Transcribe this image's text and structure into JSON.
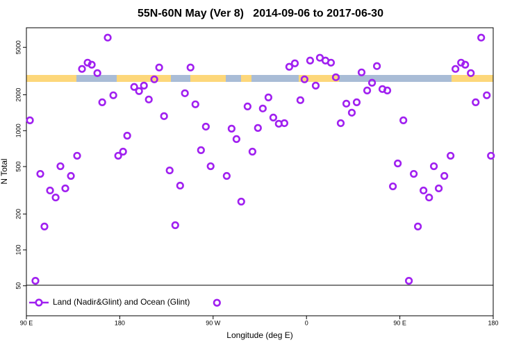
{
  "chart_data": {
    "type": "scatter",
    "title": "55N-60N May (Ver 8)   2014-09-06 to 2017-06-30",
    "x_label": "Longitude (deg E)",
    "y_label": "N Total",
    "ylog": true,
    "legend": "bottom-left",
    "xlim": [
      90,
      540
    ],
    "ylim": [
      28,
      7300
    ],
    "xticks": [
      {
        "value": 90,
        "label": "90 E"
      },
      180,
      {
        "value": 270,
        "label": "90 W"
      },
      {
        "value": 360,
        "label": "0"
      },
      {
        "value": 450,
        "label": "90 E"
      },
      {
        "value": 540,
        "label": "180"
      }
    ],
    "yticks": [
      50,
      100,
      200,
      500,
      1000,
      2000,
      5000
    ],
    "series": [
      {
        "name": "Land (Nadir&Glint) and Ocean (Glint)",
        "color": "#a020f0",
        "x": [
          93.4,
          98.7,
          103.4,
          107.4,
          112.8,
          118.2,
          122.8,
          127.5,
          132.9,
          138.9,
          143.6,
          149.0,
          153.0,
          158.4,
          163.1,
          168.4,
          173.8,
          178.5,
          183.2,
          187.2,
          193.9,
          198.6,
          203.3,
          208.0,
          213.3,
          218.0,
          222.7,
          228.1,
          233.5,
          238.2,
          242.8,
          248.2,
          252.9,
          258.3,
          263.0,
          267.6,
          273.7,
          283.1,
          287.8,
          292.5,
          297.1,
          303.2,
          307.9,
          313.2,
          317.9,
          323.3,
          328.0,
          333.3,
          338.7,
          343.4,
          348.8,
          354.1,
          358.1,
          363.5,
          368.9,
          372.9,
          378.3,
          383.6,
          388.3,
          393.0,
          398.4,
          403.7,
          408.4,
          413.1,
          418.5,
          423.2,
          427.9,
          433.2,
          437.9,
          443.3,
          448.0,
          453.4,
          458.7,
          463.4,
          467.4,
          472.8,
          478.2,
          482.8,
          487.5,
          492.9,
          498.9,
          503.6,
          509.0,
          513.0,
          518.4,
          523.1,
          528.4,
          533.8,
          537.8
        ],
        "values": [
          1221,
          55,
          434,
          157,
          315,
          275,
          503,
          328,
          417,
          616,
          3296,
          3720,
          3575,
          3040,
          1730,
          6035,
          1981,
          616,
          667,
          908,
          2327,
          2147,
          2388,
          1827,
          2695,
          3389,
          1324,
          464,
          161,
          346,
          2061,
          3389,
          1664,
          686,
          1081,
          503,
          36,
          417,
          1040,
          850,
          254,
          1596,
          667,
          1054,
          1535,
          1901,
          1288,
          1143,
          1156,
          3435,
          3672,
          1803,
          2695,
          3873,
          2388,
          4090,
          3873,
          3720,
          2806,
          1156,
          1686,
          1416,
          1730,
          3083,
          2173,
          2522,
          3482,
          2234,
          2173,
          341,
          531,
          1221,
          55,
          434,
          157,
          315,
          275,
          503,
          328,
          417,
          616,
          3296,
          3720,
          3575,
          3040,
          1730,
          6035,
          1981,
          616
        ]
      }
    ]
  }
}
